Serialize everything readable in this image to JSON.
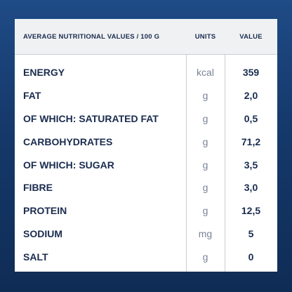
{
  "table": {
    "headers": {
      "name": "AVERAGE NUTRITIONAL VALUES / 100 G",
      "units": "UNITS",
      "value": "VALUE"
    },
    "rows": [
      {
        "name": "ENERGY",
        "unit": "kcal",
        "value": "359"
      },
      {
        "name": "FAT",
        "unit": "g",
        "value": "2,0"
      },
      {
        "name": "OF WHICH: SATURATED FAT",
        "unit": "g",
        "value": "0,5"
      },
      {
        "name": "CARBOHYDRATES",
        "unit": "g",
        "value": "71,2"
      },
      {
        "name": "OF WHICH: SUGAR",
        "unit": "g",
        "value": "3,5"
      },
      {
        "name": "FIBRE",
        "unit": "g",
        "value": "3,0"
      },
      {
        "name": "PROTEIN",
        "unit": "g",
        "value": "12,5"
      },
      {
        "name": "SODIUM",
        "unit": "mg",
        "value": "5"
      },
      {
        "name": "SALT",
        "unit": "g",
        "value": "0"
      }
    ]
  },
  "colors": {
    "background_top": "#1f4b86",
    "background_bottom": "#0f2c55",
    "text": "#1a2c4f",
    "unit_text": "#7a8396",
    "header_bg": "#f0f1f3"
  }
}
